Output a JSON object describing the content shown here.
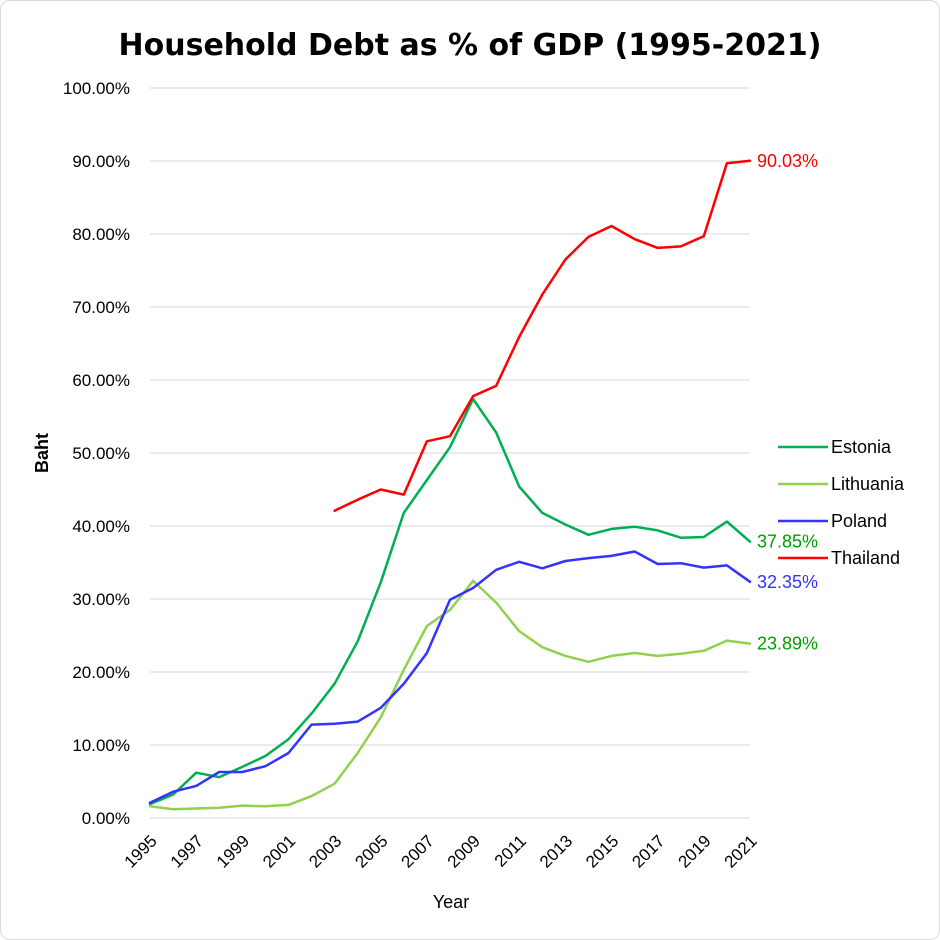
{
  "chart_data": {
    "type": "line",
    "title": "Household Debt as % of GDP (1995-2021)",
    "xlabel": "Year",
    "ylabel": "Baht",
    "ylim": [
      0,
      100
    ],
    "y_tick_labels": [
      "0.00%",
      "10.00%",
      "20.00%",
      "30.00%",
      "40.00%",
      "50.00%",
      "60.00%",
      "70.00%",
      "80.00%",
      "90.00%",
      "100.00%"
    ],
    "x": [
      1995,
      1996,
      1997,
      1998,
      1999,
      2000,
      2001,
      2002,
      2003,
      2004,
      2005,
      2006,
      2007,
      2008,
      2009,
      2010,
      2011,
      2012,
      2013,
      2014,
      2015,
      2016,
      2017,
      2018,
      2019,
      2020,
      2021
    ],
    "x_tick_labels": [
      "1995",
      "1997",
      "1999",
      "2001",
      "2003",
      "2005",
      "2007",
      "2009",
      "2011",
      "2013",
      "2015",
      "2017",
      "2019",
      "2021"
    ],
    "grid": true,
    "legend_position": "right",
    "series": [
      {
        "name": "Estonia",
        "color": "#00b050",
        "values": [
          1.9,
          3.2,
          6.2,
          5.6,
          7.0,
          8.5,
          10.8,
          14.3,
          18.4,
          24.2,
          32.3,
          41.8,
          46.3,
          50.8,
          57.4,
          52.8,
          45.4,
          41.8,
          40.2,
          38.8,
          39.6,
          39.9,
          39.4,
          38.4,
          38.5,
          40.6,
          37.85
        ],
        "end_label": "37.85%",
        "end_label_color": "#00a000"
      },
      {
        "name": "Lithuania",
        "color": "#92d050",
        "values": [
          1.6,
          1.2,
          1.3,
          1.4,
          1.7,
          1.6,
          1.8,
          3.0,
          4.7,
          8.9,
          13.8,
          20.3,
          26.3,
          28.5,
          32.5,
          29.5,
          25.6,
          23.4,
          22.2,
          21.4,
          22.2,
          22.6,
          22.2,
          22.5,
          22.9,
          24.3,
          23.89
        ],
        "end_label": "23.89%",
        "end_label_color": "#00a000"
      },
      {
        "name": "Poland",
        "color": "#3333ff",
        "values": [
          2.1,
          3.6,
          4.4,
          6.3,
          6.3,
          7.1,
          8.9,
          12.8,
          12.9,
          13.2,
          15.1,
          18.4,
          22.6,
          29.9,
          31.5,
          34.0,
          35.1,
          34.2,
          35.2,
          35.6,
          35.9,
          36.5,
          34.8,
          34.9,
          34.3,
          34.6,
          32.35
        ],
        "end_label": "32.35%",
        "end_label_color": "#3333ff"
      },
      {
        "name": "Thailand",
        "color": "#ff0000",
        "values": [
          null,
          null,
          null,
          null,
          null,
          null,
          null,
          null,
          42.1,
          43.6,
          45.0,
          44.3,
          51.6,
          52.3,
          57.8,
          59.2,
          65.9,
          71.7,
          76.5,
          79.6,
          81.1,
          79.3,
          78.1,
          78.3,
          79.7,
          89.7,
          90.03
        ],
        "end_label": "90.03%",
        "end_label_color": "#ff0000"
      }
    ]
  }
}
